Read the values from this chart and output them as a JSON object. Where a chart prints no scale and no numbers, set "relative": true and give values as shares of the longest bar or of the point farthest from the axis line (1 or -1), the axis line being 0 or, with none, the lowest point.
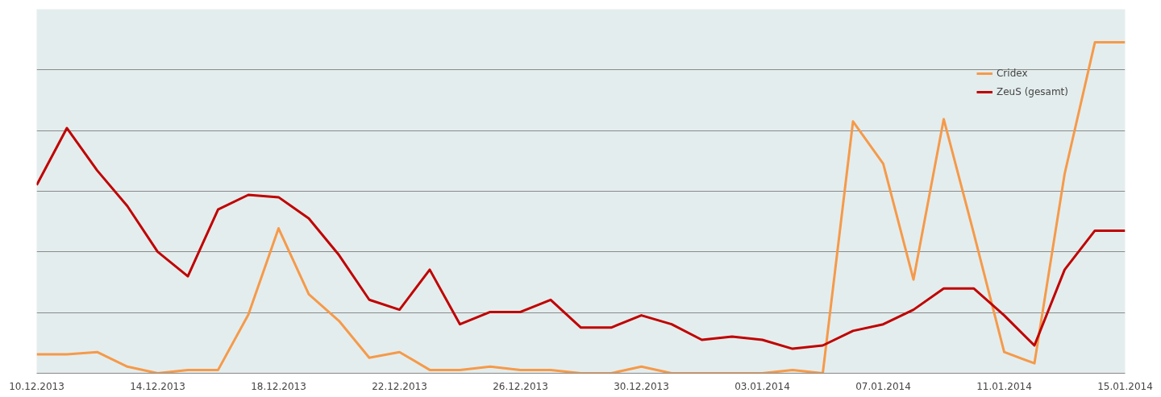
{
  "chart_data": {
    "type": "line",
    "relative": true,
    "grid": "y",
    "legend": "top right",
    "line_style": "solid",
    "x": [
      "2013-12-10",
      "2013-12-11",
      "2013-12-12",
      "2013-12-13",
      "2013-12-14",
      "2013-12-15",
      "2013-12-16",
      "2013-12-17",
      "2013-12-18",
      "2013-12-19",
      "2013-12-20",
      "2013-12-21",
      "2013-12-22",
      "2013-12-23",
      "2013-12-24",
      "2013-12-25",
      "2013-12-26",
      "2013-12-27",
      "2013-12-28",
      "2013-12-29",
      "2013-12-30",
      "2013-12-31",
      "2014-01-01",
      "2014-01-02",
      "2014-01-03",
      "2014-01-04",
      "2014-01-05",
      "2014-01-06",
      "2014-01-07",
      "2014-01-08",
      "2014-01-09",
      "2014-01-10",
      "2014-01-11",
      "2014-01-12",
      "2014-01-13",
      "2014-01-14",
      "2014-01-15"
    ],
    "xlim": [
      "2013-12-10",
      "2014-01-15"
    ],
    "xticks": [
      {
        "value": "2013-12-10",
        "label": "10.12.2013"
      },
      {
        "value": "2013-12-14",
        "label": "14.12.2013"
      },
      {
        "value": "2013-12-18",
        "label": "18.12.2013"
      },
      {
        "value": "2013-12-22",
        "label": "22.12.2013"
      },
      {
        "value": "2013-12-26",
        "label": "26.12.2013"
      },
      {
        "value": "2013-12-30",
        "label": "30.12.2013"
      },
      {
        "value": "2014-01-03",
        "label": "03.01.2014"
      },
      {
        "value": "2014-01-07",
        "label": "07.01.2014"
      },
      {
        "value": "2014-01-11",
        "label": "11.01.2014"
      },
      {
        "value": "2014-01-15",
        "label": "15.01.2014"
      }
    ],
    "series": [
      {
        "name": "Cridex",
        "color": "#f59a4a",
        "values": [
          0.057,
          0.057,
          0.064,
          0.02,
          0,
          0.01,
          0.01,
          0.177,
          0.438,
          0.239,
          0.158,
          0.047,
          0.064,
          0.01,
          0.01,
          0.02,
          0.01,
          0.01,
          0,
          0,
          0.02,
          0,
          0,
          0,
          0,
          0.01,
          0,
          0.761,
          0.633,
          0.283,
          0.768,
          0.421,
          0.064,
          0.03,
          0.603,
          1,
          1
        ]
      },
      {
        "name": "ZeuS (gesamt)",
        "color": "#c00000",
        "values": [
          0.569,
          0.741,
          0.613,
          0.505,
          0.367,
          0.293,
          0.495,
          0.539,
          0.532,
          0.468,
          0.357,
          0.222,
          0.192,
          0.313,
          0.148,
          0.185,
          0.185,
          0.222,
          0.138,
          0.138,
          0.175,
          0.148,
          0.101,
          0.111,
          0.101,
          0.074,
          0.084,
          0.128,
          0.148,
          0.192,
          0.256,
          0.256,
          0.175,
          0.084,
          0.313,
          0.431,
          0.431
        ]
      }
    ]
  }
}
